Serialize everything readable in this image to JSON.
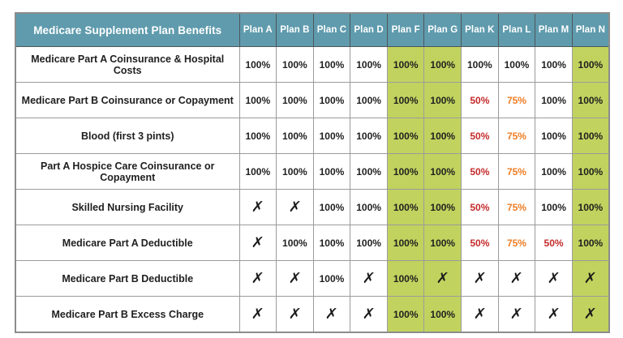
{
  "table": {
    "title": "Medicare Supplement Plan Benefits",
    "plan_headers": [
      "Plan A",
      "Plan B",
      "Plan C",
      "Plan D",
      "Plan F",
      "Plan G",
      "Plan K",
      "Plan L",
      "Plan M",
      "Plan N"
    ],
    "highlighted_plans": [
      "Plan F",
      "Plan G",
      "Plan N"
    ],
    "rows": [
      {
        "label": "Medicare Part A Coinsurance & Hospital Costs",
        "values": [
          "100%",
          "100%",
          "100%",
          "100%",
          "100%",
          "100%",
          "100%",
          "100%",
          "100%",
          "100%"
        ]
      },
      {
        "label": "Medicare Part B Coinsurance or Copayment",
        "values": [
          "100%",
          "100%",
          "100%",
          "100%",
          "100%",
          "100%",
          "50%",
          "75%",
          "100%",
          "100%"
        ]
      },
      {
        "label": "Blood (first 3 pints)",
        "values": [
          "100%",
          "100%",
          "100%",
          "100%",
          "100%",
          "100%",
          "50%",
          "75%",
          "100%",
          "100%"
        ]
      },
      {
        "label": "Part A Hospice Care Coinsurance or Copayment",
        "values": [
          "100%",
          "100%",
          "100%",
          "100%",
          "100%",
          "100%",
          "50%",
          "75%",
          "100%",
          "100%"
        ]
      },
      {
        "label": "Skilled Nursing Facility",
        "values": [
          "✗",
          "✗",
          "100%",
          "100%",
          "100%",
          "100%",
          "50%",
          "75%",
          "100%",
          "100%"
        ]
      },
      {
        "label": "Medicare Part A Deductible",
        "values": [
          "✗",
          "100%",
          "100%",
          "100%",
          "100%",
          "100%",
          "50%",
          "75%",
          "50%",
          "100%"
        ]
      },
      {
        "label": "Medicare Part B Deductible",
        "values": [
          "✗",
          "✗",
          "100%",
          "✗",
          "100%",
          "✗",
          "✗",
          "✗",
          "✗",
          "✗"
        ]
      },
      {
        "label": "Medicare Part B Excess Charge",
        "values": [
          "✗",
          "✗",
          "✗",
          "✗",
          "100%",
          "100%",
          "✗",
          "✗",
          "✗",
          "✗"
        ]
      }
    ]
  },
  "colors": {
    "header_bg": "#5f9bad",
    "highlight_green": "#c1d35e",
    "value_red": "#c42b2b",
    "value_orange": "#ee7d24",
    "text": "#1f1f1f",
    "header_border": "#4f555a",
    "body_border": "#9b9b9b"
  }
}
